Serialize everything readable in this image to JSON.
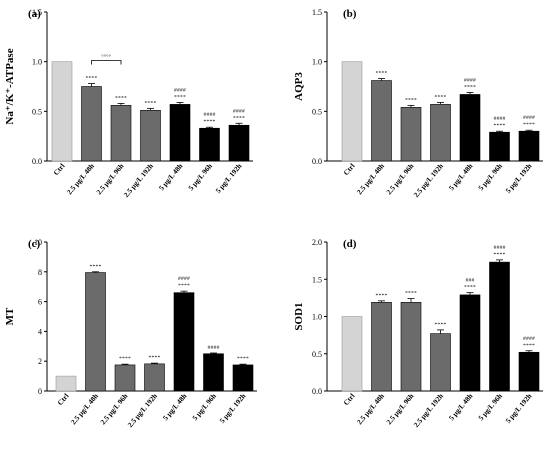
{
  "chart_data": [
    {
      "type": "bar",
      "panel_label": "(a)",
      "ylabel": "Na⁺/K⁺-ATPase",
      "ylim": [
        0,
        1.5
      ],
      "yticks": [
        "0.0",
        "0.5",
        "1.0",
        "1.5"
      ],
      "categories": [
        "Ctrl",
        "2.5 μg/L 48h",
        "2.5 μg/L 96h",
        "2.5 μg/L 192h",
        "5 μg/L 48h",
        "5 μg/L 96h",
        "5 μg/L 192h"
      ],
      "values": [
        1.0,
        0.75,
        0.56,
        0.51,
        0.57,
        0.33,
        0.36
      ],
      "errors": [
        0,
        0.03,
        0.02,
        0.02,
        0.02,
        0.01,
        0.02
      ],
      "sig_vs_ctrl": [
        "",
        "****",
        "****",
        "****",
        "****",
        "****",
        "****"
      ],
      "sig_hash": [
        "",
        "",
        "",
        "",
        "####",
        "####",
        "####"
      ],
      "bracket": {
        "from": 1,
        "to": 2,
        "label": "°°°°"
      },
      "bar_colors": [
        "#d4d4d4",
        "#6b6b6b",
        "#6b6b6b",
        "#6b6b6b",
        "#000000",
        "#000000",
        "#000000"
      ]
    },
    {
      "type": "bar",
      "panel_label": "(b)",
      "ylabel": "AQP3",
      "ylim": [
        0,
        1.5
      ],
      "yticks": [
        "0.0",
        "0.5",
        "1.0",
        "1.5"
      ],
      "categories": [
        "Ctrl",
        "2.5 μg/L 48h",
        "2.5 μg/L 96h",
        "2.5 μg/L 192h",
        "5 μg/L 48h",
        "5 μg/L 96h",
        "5 μg/L 192h"
      ],
      "values": [
        1.0,
        0.81,
        0.54,
        0.57,
        0.67,
        0.29,
        0.3
      ],
      "errors": [
        0,
        0.02,
        0.02,
        0.02,
        0.02,
        0.01,
        0.01
      ],
      "sig_vs_ctrl": [
        "",
        "****",
        "****",
        "****",
        "****",
        "****",
        "****"
      ],
      "sig_hash": [
        "",
        "",
        "",
        "",
        "####",
        "####",
        "####"
      ],
      "bar_colors": [
        "#d4d4d4",
        "#6b6b6b",
        "#6b6b6b",
        "#6b6b6b",
        "#000000",
        "#000000",
        "#000000"
      ]
    },
    {
      "type": "bar",
      "panel_label": "(c)",
      "ylabel": "MT",
      "ylim": [
        0,
        10
      ],
      "yticks": [
        "0",
        "2",
        "4",
        "6",
        "8",
        "10"
      ],
      "categories": [
        "Ctrl",
        "2.5 μg/L 48h",
        "2.5 μg/L 96h",
        "2.5 μg/L 192h",
        "5 μg/L 48h",
        "5 μg/L 96h",
        "5 μg/L 192h"
      ],
      "values": [
        1.0,
        7.95,
        1.75,
        1.82,
        6.6,
        2.5,
        1.75
      ],
      "errors": [
        0,
        0.05,
        0.05,
        0.05,
        0.1,
        0.05,
        0.05
      ],
      "sig_vs_ctrl": [
        "",
        "****",
        "****",
        "****",
        "****",
        "",
        "****"
      ],
      "sig_hash": [
        "",
        "",
        "",
        "",
        "####",
        "####",
        ""
      ],
      "bar_colors": [
        "#d4d4d4",
        "#6b6b6b",
        "#6b6b6b",
        "#6b6b6b",
        "#000000",
        "#000000",
        "#000000"
      ]
    },
    {
      "type": "bar",
      "panel_label": "(d)",
      "ylabel": "SOD1",
      "ylim": [
        0,
        2.0
      ],
      "yticks": [
        "0.0",
        "0.5",
        "1.0",
        "1.5",
        "2.0"
      ],
      "categories": [
        "Ctrl",
        "2.5 μg/L 48h",
        "2.5 μg/L 96h",
        "2.5 μg/L 192h",
        "5 μg/L 48h",
        "5 μg/L 96h",
        "5 μg/L 192h"
      ],
      "values": [
        1.0,
        1.19,
        1.19,
        0.77,
        1.29,
        1.73,
        0.52
      ],
      "errors": [
        0,
        0.02,
        0.05,
        0.05,
        0.03,
        0.03,
        0.02
      ],
      "sig_vs_ctrl": [
        "",
        "****",
        "****",
        "****",
        "****",
        "****",
        "****"
      ],
      "sig_hash": [
        "",
        "",
        "",
        "",
        "###",
        "####",
        "####"
      ],
      "bar_colors": [
        "#d4d4d4",
        "#6b6b6b",
        "#6b6b6b",
        "#6b6b6b",
        "#000000",
        "#000000",
        "#000000"
      ]
    }
  ]
}
